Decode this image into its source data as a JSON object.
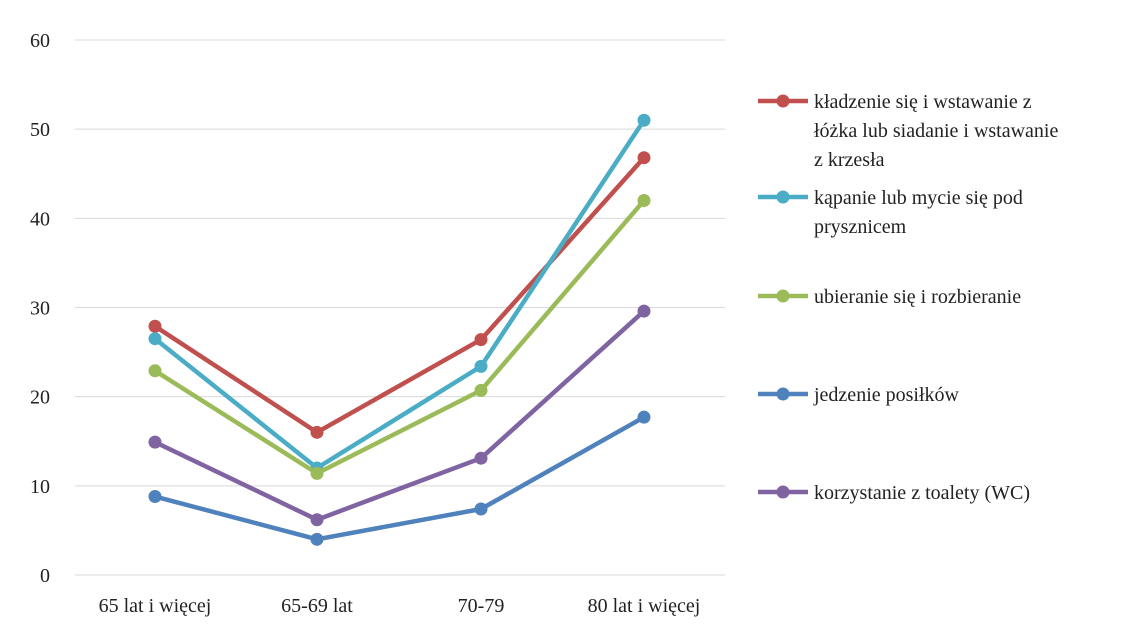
{
  "chart_data": {
    "type": "line",
    "categories": [
      "65 lat i więcej",
      "65-69 lat",
      "70-79",
      "80 lat i więcej"
    ],
    "ylim": [
      0,
      60
    ],
    "yticks": [
      "0",
      "10",
      "20",
      "30",
      "40",
      "50",
      "60"
    ],
    "grid": true,
    "legend_position": "right",
    "series": [
      {
        "name": "kładzenie się i wstawanie z łóżka lub siadanie i wstawanie z krzesła",
        "color": "#c0504d",
        "values": [
          27.9,
          16.0,
          26.4,
          46.8
        ]
      },
      {
        "name": "kąpanie lub mycie się pod prysznicem",
        "color": "#4bacc6",
        "values": [
          26.5,
          12.0,
          23.4,
          51.0
        ]
      },
      {
        "name": "ubieranie się i rozbieranie",
        "color": "#9bbb59",
        "values": [
          22.9,
          11.4,
          20.7,
          42.0
        ]
      },
      {
        "name": "jedzenie posiłków",
        "color": "#4f81bd",
        "values": [
          8.8,
          4.0,
          7.4,
          17.7
        ]
      },
      {
        "name": "korzystanie z toalety (WC)",
        "color": "#8064a2",
        "values": [
          14.9,
          6.2,
          13.1,
          29.6
        ]
      }
    ]
  }
}
